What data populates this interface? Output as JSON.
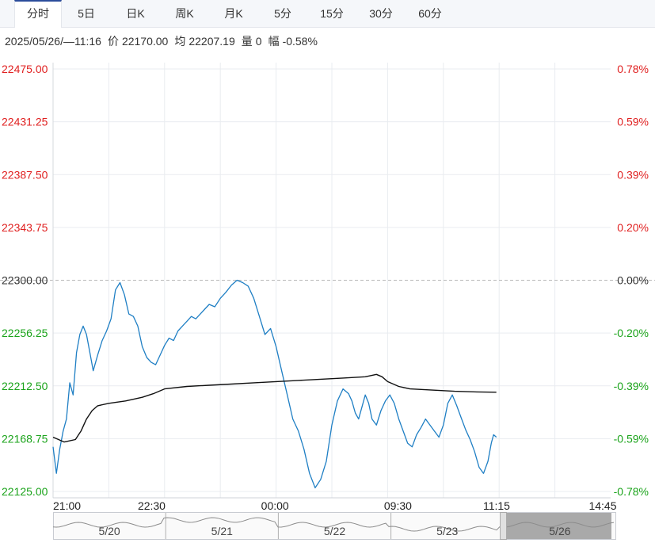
{
  "tabs": [
    {
      "label": "分时",
      "active": true
    },
    {
      "label": "5日",
      "active": false
    },
    {
      "label": "日K",
      "active": false
    },
    {
      "label": "周K",
      "active": false
    },
    {
      "label": "月K",
      "active": false
    },
    {
      "label": "5分",
      "active": false
    },
    {
      "label": "15分",
      "active": false
    },
    {
      "label": "30分",
      "active": false
    },
    {
      "label": "60分",
      "active": false
    }
  ],
  "info": {
    "datetime": "2025/05/26/—11:16",
    "price_label": "价",
    "price": "22170.00",
    "avg_label": "均",
    "avg": "22207.19",
    "volume_label": "量",
    "volume": "0",
    "range_label": "幅",
    "range": "-0.58%"
  },
  "colors": {
    "up": "#e02020",
    "down": "#1aa31a",
    "flat": "#333333",
    "price_line": "#1f7fc4",
    "avg_line": "#111111",
    "grid": "#e9ecf0"
  },
  "chart_data": {
    "type": "line",
    "title": "",
    "prev_close": 22300.0,
    "ylim": [
      22125.0,
      22475.0
    ],
    "y_ticks_left": [
      "22475.00",
      "22431.25",
      "22387.50",
      "22343.75",
      "22300.00",
      "22256.25",
      "22212.50",
      "22168.75",
      "22125.00"
    ],
    "y_ticks_right": [
      "0.78%",
      "0.59%",
      "0.39%",
      "0.20%",
      "0.00%",
      "-0.20%",
      "-0.39%",
      "-0.59%",
      "-0.78%"
    ],
    "x_ticks": [
      "21:00",
      "22:30",
      "00:00",
      "09:30",
      "11:15",
      "14:45"
    ],
    "x_domain": [
      0,
      1000
    ],
    "x_tick_positions": [
      0,
      176.8,
      398.0,
      618.5,
      795.4,
      1000
    ],
    "series": [
      {
        "key": "price",
        "x": [
          0,
          6,
          12,
          18,
          24,
          30,
          36,
          42,
          48,
          54,
          60,
          66,
          72,
          80,
          88,
          96,
          104,
          112,
          120,
          128,
          136,
          144,
          152,
          160,
          168,
          176,
          184,
          192,
          200,
          208,
          216,
          224,
          232,
          240,
          248,
          256,
          264,
          272,
          280,
          290,
          300,
          310,
          320,
          330,
          340,
          350,
          360,
          370,
          380,
          390,
          400,
          410,
          420,
          430,
          440,
          450,
          460,
          470,
          480,
          490,
          500,
          510,
          520,
          530,
          536,
          542,
          548,
          554,
          560,
          566,
          572,
          580,
          588,
          596,
          604,
          612,
          620,
          628,
          636,
          644,
          652,
          660,
          668,
          676,
          684,
          692,
          700,
          708,
          716,
          724,
          732,
          740,
          748,
          756,
          764,
          772,
          780,
          786,
          790,
          795
        ],
        "y": [
          22162,
          22140,
          22160,
          22175,
          22185,
          22215,
          22205,
          22240,
          22255,
          22262,
          22255,
          22240,
          22225,
          22238,
          22250,
          22258,
          22268,
          22292,
          22298,
          22288,
          22272,
          22270,
          22262,
          22245,
          22236,
          22232,
          22230,
          22238,
          22246,
          22252,
          22250,
          22258,
          22262,
          22266,
          22270,
          22268,
          22272,
          22276,
          22280,
          22278,
          22285,
          22290,
          22296,
          22300,
          22298,
          22295,
          22285,
          22270,
          22255,
          22260,
          22245,
          22225,
          22205,
          22185,
          22175,
          22160,
          22140,
          22128,
          22135,
          22150,
          22180,
          22200,
          22210,
          22206,
          22200,
          22190,
          22185,
          22195,
          22205,
          22198,
          22185,
          22180,
          22192,
          22200,
          22205,
          22198,
          22185,
          22175,
          22165,
          22162,
          22172,
          22178,
          22185,
          22180,
          22175,
          22170,
          22180,
          22198,
          22205,
          22196,
          22186,
          22176,
          22168,
          22158,
          22145,
          22140,
          22150,
          22165,
          22172,
          22170
        ]
      },
      {
        "key": "avg",
        "x": [
          0,
          20,
          40,
          50,
          60,
          70,
          80,
          100,
          130,
          160,
          180,
          200,
          240,
          280,
          320,
          360,
          400,
          440,
          480,
          520,
          560,
          580,
          590,
          600,
          620,
          640,
          680,
          720,
          760,
          795
        ],
        "y": [
          22170,
          22166,
          22168,
          22175,
          22185,
          22192,
          22196,
          22198,
          22200,
          22203,
          22206,
          22210,
          22212,
          22213,
          22214,
          22215,
          22216,
          22217,
          22218,
          22219,
          22220,
          22222,
          22220,
          22216,
          22212,
          22210,
          22209,
          22208,
          22207.5,
          22207.19
        ]
      }
    ],
    "navigator_labels": [
      "5/20",
      "5/21",
      "5/22",
      "5/23",
      "5/26"
    ]
  }
}
